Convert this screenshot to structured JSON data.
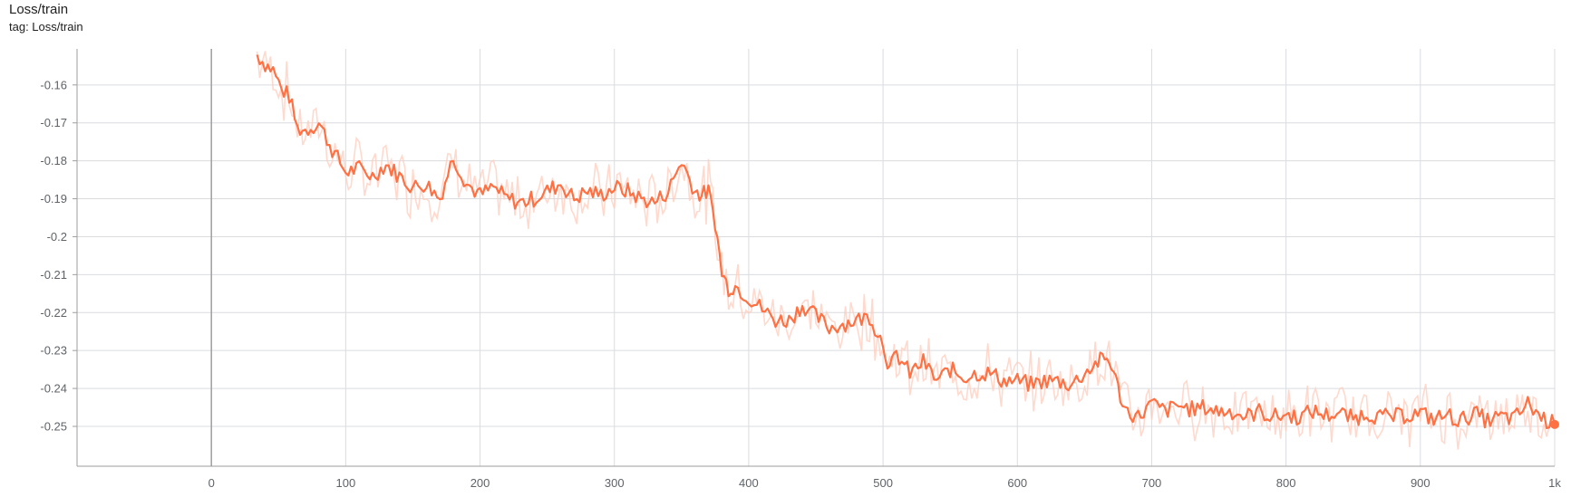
{
  "card": {
    "title": "Loss/train",
    "tag": "tag: Loss/train"
  },
  "chart_data": {
    "type": "line",
    "title": "Loss/train",
    "xlabel": "",
    "ylabel": "",
    "xlim": [
      -100,
      1000
    ],
    "ylim": [
      -0.2605,
      -0.1505
    ],
    "xticks": [
      0,
      100,
      200,
      300,
      400,
      500,
      600,
      700,
      800,
      900,
      1000
    ],
    "xtick_labels": [
      "0",
      "100",
      "200",
      "300",
      "400",
      "500",
      "600",
      "700",
      "800",
      "900",
      "1k"
    ],
    "yticks": [
      -0.16,
      -0.17,
      -0.18,
      -0.19,
      -0.2,
      -0.21,
      -0.22,
      -0.23,
      -0.24,
      -0.25
    ],
    "ytick_labels": [
      "-0.16",
      "-0.17",
      "-0.18",
      "-0.19",
      "-0.2",
      "-0.21",
      "-0.22",
      "-0.23",
      "-0.24",
      "-0.25"
    ],
    "grid": true,
    "legend": "none",
    "colors": {
      "smoothed": "#ff7043",
      "raw": "#ffccbc",
      "grid": "#dadce0",
      "axis": "#9e9e9e"
    },
    "series": [
      {
        "role": "smoothed",
        "x": [
          34,
          40,
          46,
          52,
          58,
          64,
          70,
          80,
          90,
          100,
          110,
          120,
          130,
          140,
          150,
          160,
          170,
          180,
          190,
          200,
          210,
          220,
          230,
          240,
          250,
          260,
          270,
          280,
          290,
          300,
          310,
          320,
          330,
          340,
          350,
          360,
          365,
          370,
          375,
          380,
          385,
          390,
          400,
          410,
          420,
          430,
          440,
          450,
          460,
          470,
          480,
          490,
          500,
          505,
          510,
          520,
          530,
          540,
          550,
          560,
          570,
          580,
          590,
          600,
          610,
          620,
          630,
          640,
          650,
          660,
          665,
          670,
          675,
          680,
          690,
          700,
          710,
          720,
          730,
          740,
          750,
          760,
          770,
          780,
          790,
          800,
          810,
          820,
          830,
          840,
          850,
          860,
          870,
          880,
          890,
          900,
          910,
          920,
          930,
          940,
          950,
          960,
          970,
          980,
          990,
          1000
        ],
        "y": [
          -0.152,
          -0.1545,
          -0.156,
          -0.161,
          -0.163,
          -0.1715,
          -0.172,
          -0.17,
          -0.177,
          -0.183,
          -0.182,
          -0.184,
          -0.181,
          -0.184,
          -0.187,
          -0.186,
          -0.19,
          -0.179,
          -0.186,
          -0.189,
          -0.187,
          -0.19,
          -0.191,
          -0.19,
          -0.188,
          -0.186,
          -0.19,
          -0.188,
          -0.189,
          -0.187,
          -0.188,
          -0.19,
          -0.191,
          -0.188,
          -0.18,
          -0.188,
          -0.189,
          -0.188,
          -0.196,
          -0.2095,
          -0.2135,
          -0.213,
          -0.216,
          -0.219,
          -0.222,
          -0.222,
          -0.218,
          -0.221,
          -0.224,
          -0.223,
          -0.222,
          -0.221,
          -0.228,
          -0.235,
          -0.231,
          -0.236,
          -0.233,
          -0.238,
          -0.235,
          -0.237,
          -0.236,
          -0.236,
          -0.238,
          -0.238,
          -0.239,
          -0.238,
          -0.238,
          -0.239,
          -0.236,
          -0.233,
          -0.232,
          -0.2335,
          -0.24,
          -0.2455,
          -0.2475,
          -0.244,
          -0.246,
          -0.2445,
          -0.2455,
          -0.245,
          -0.246,
          -0.246,
          -0.2475,
          -0.246,
          -0.2475,
          -0.247,
          -0.2475,
          -0.246,
          -0.247,
          -0.2465,
          -0.248,
          -0.2465,
          -0.2475,
          -0.2475,
          -0.247,
          -0.2465,
          -0.248,
          -0.247,
          -0.2485,
          -0.2465,
          -0.2485,
          -0.2475,
          -0.248,
          -0.244,
          -0.2475,
          -0.2495
        ]
      }
    ]
  }
}
